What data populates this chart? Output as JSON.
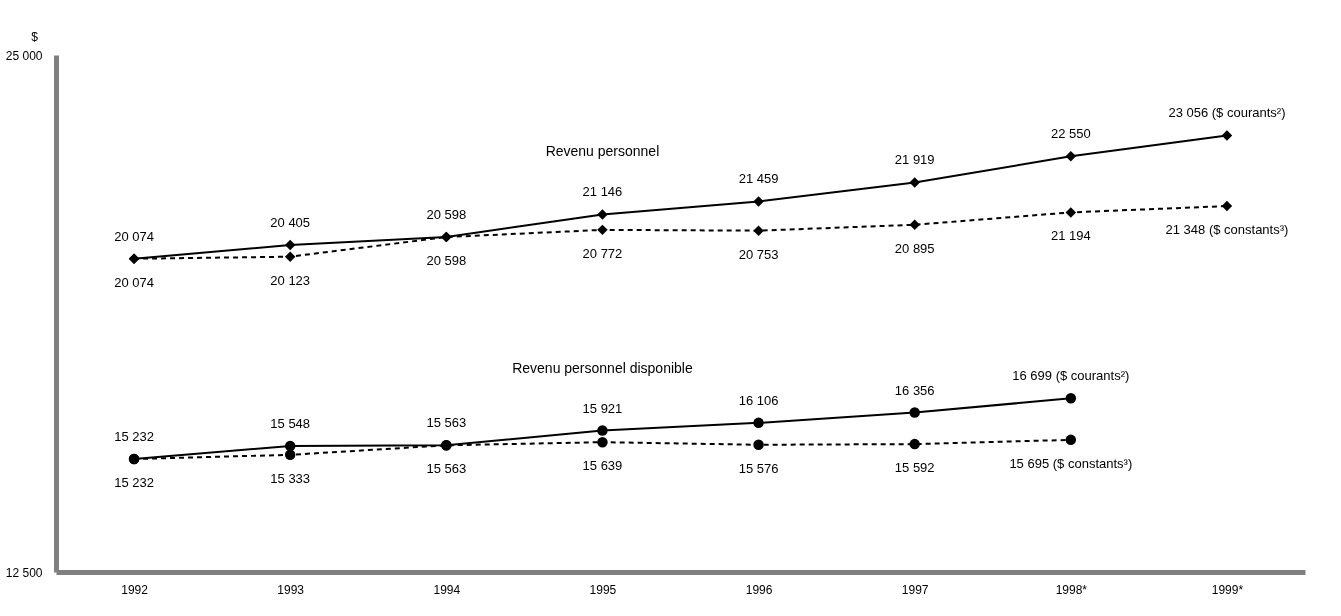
{
  "chart_data": {
    "type": "line",
    "ylabel": "$",
    "categories": [
      "1992",
      "1993",
      "1994",
      "1995",
      "1996",
      "1997",
      "1998*",
      "1999*"
    ],
    "ylim": [
      12500,
      25000
    ],
    "yticks": [
      {
        "value": 12500,
        "label": "12 500"
      },
      {
        "value": 25000,
        "label": "25 000"
      }
    ],
    "grid": false,
    "annotations": [
      "Revenu personnel",
      "Revenu personnel disponible"
    ],
    "series": [
      {
        "color": "#000000",
        "marker": "diamond",
        "line_style": "solid",
        "values": [
          20074,
          20405,
          20598,
          21146,
          21459,
          21919,
          22550,
          23056
        ],
        "value_labels": [
          "20 074",
          "20 405",
          "20 598",
          "21 146",
          "21 459",
          "21 919",
          "22 550",
          "23 056 ($ courants²)"
        ]
      },
      {
        "color": "#000000",
        "marker": "diamond",
        "line_style": "dashed",
        "values": [
          20074,
          20123,
          20598,
          20772,
          20753,
          20895,
          21194,
          21348
        ],
        "value_labels": [
          "20 074",
          "20 123",
          "20 598",
          "20 772",
          "20 753",
          "20 895",
          "21 194",
          "21 348 ($ constants³)"
        ]
      },
      {
        "color": "#000000",
        "marker": "circle",
        "line_style": "solid",
        "values": [
          15232,
          15548,
          15563,
          15921,
          16106,
          16356,
          16699,
          null
        ],
        "value_labels": [
          "15 232",
          "15 548",
          "15 563",
          "15 921",
          "16 106",
          "16 356",
          "16 699 ($ courants²)",
          null
        ]
      },
      {
        "color": "#000000",
        "marker": "circle",
        "line_style": "dashed",
        "values": [
          15232,
          15333,
          15563,
          15639,
          15576,
          15592,
          15695,
          null
        ],
        "value_labels": [
          "15 232",
          "15 333",
          "15 563",
          "15 639",
          "15 576",
          "15 592",
          "15 695 ($ constants³)",
          null
        ]
      }
    ]
  }
}
